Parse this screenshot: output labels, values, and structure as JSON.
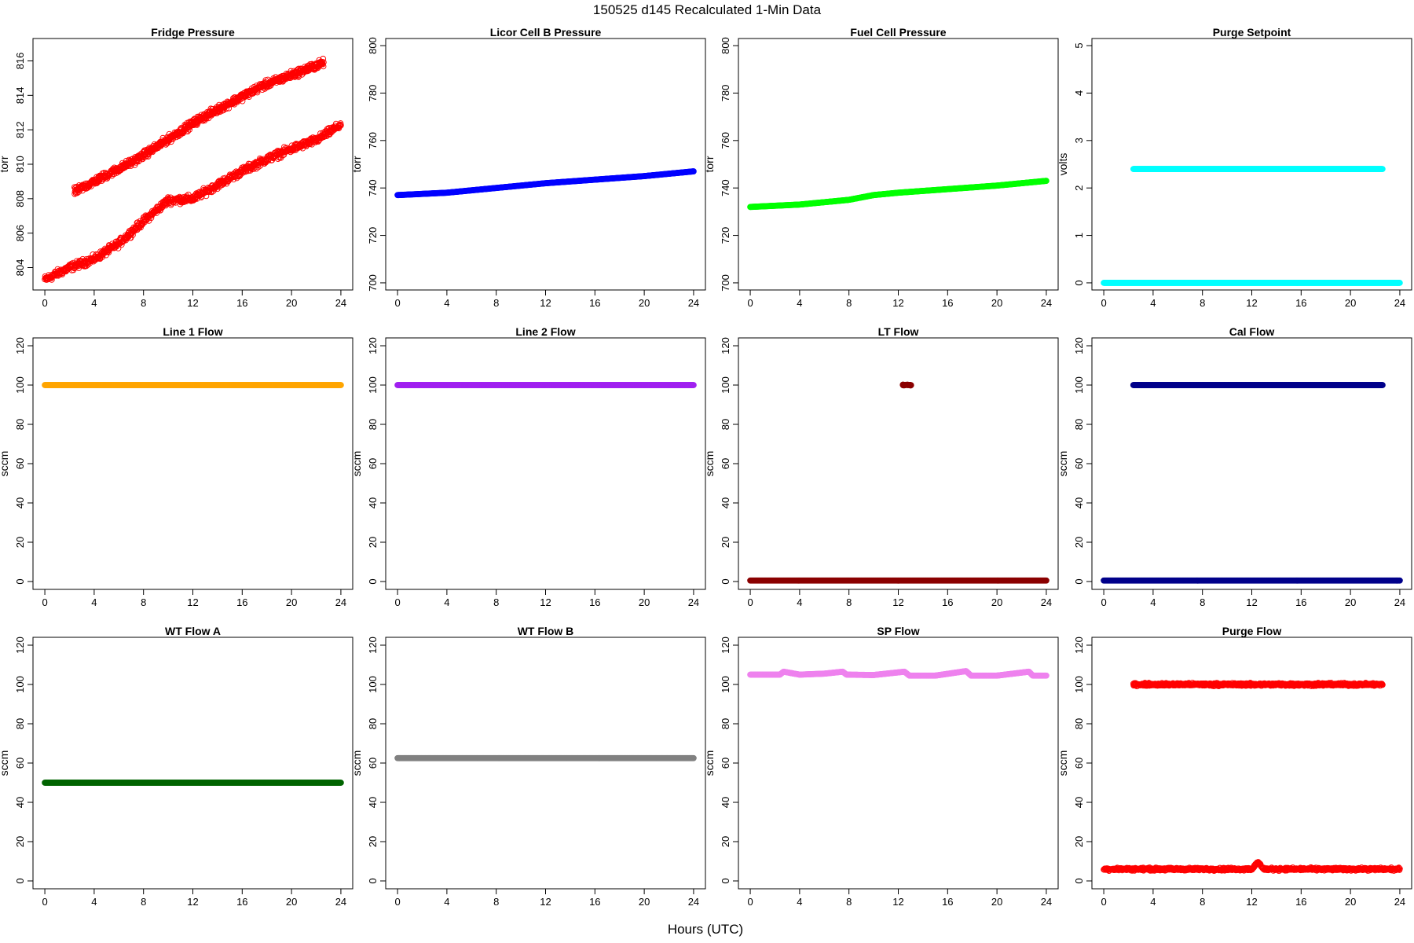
{
  "figure": {
    "title": "150525   d145   Recalculated 1-Min Data",
    "xlabel": "Hours (UTC)"
  },
  "chart_data": [
    {
      "type": "scatter",
      "title": "Fridge Pressure",
      "ylabel": "torr",
      "xlim": [
        0,
        24
      ],
      "ylim": [
        802.7,
        817.3
      ],
      "xticks": [
        0,
        4,
        8,
        12,
        16,
        20,
        24
      ],
      "yticks": [
        804,
        806,
        808,
        810,
        812,
        814,
        816
      ],
      "color": "#ff0000",
      "marker": "open-circle",
      "series": [
        {
          "x": [
            0,
            2,
            4,
            6,
            8,
            10,
            12,
            14,
            16,
            18,
            20,
            22,
            24
          ],
          "y": [
            803.3,
            804.0,
            804.5,
            805.4,
            806.7,
            807.9,
            808.0,
            808.8,
            809.6,
            810.3,
            810.9,
            811.4,
            812.3
          ]
        },
        {
          "x": [
            2.4,
            7.5,
            12.5,
            17.5,
            22.6
          ],
          "y": [
            808.4,
            810.3,
            812.6,
            814.5,
            815.9
          ]
        }
      ]
    },
    {
      "type": "scatter",
      "title": "Licor Cell B Pressure",
      "ylabel": "torr",
      "xlim": [
        0,
        24
      ],
      "ylim": [
        697,
        803
      ],
      "xticks": [
        0,
        4,
        8,
        12,
        16,
        20,
        24
      ],
      "yticks": [
        700,
        720,
        740,
        760,
        780,
        800
      ],
      "color": "#0000ff",
      "marker": "filled-circle",
      "series": [
        {
          "x": [
            0,
            4,
            8,
            12,
            16,
            20,
            24
          ],
          "y": [
            737,
            738,
            740,
            742,
            743.5,
            745,
            747
          ]
        }
      ]
    },
    {
      "type": "scatter",
      "title": "Fuel Cell Pressure",
      "ylabel": "torr",
      "xlim": [
        0,
        24
      ],
      "ylim": [
        697,
        803
      ],
      "xticks": [
        0,
        4,
        8,
        12,
        16,
        20,
        24
      ],
      "yticks": [
        700,
        720,
        740,
        760,
        780,
        800
      ],
      "color": "#00ff00",
      "marker": "filled-circle",
      "series": [
        {
          "x": [
            0,
            4,
            8,
            10,
            12,
            16,
            20,
            24
          ],
          "y": [
            732,
            733,
            735,
            737,
            738,
            739.5,
            741,
            743
          ]
        }
      ]
    },
    {
      "type": "scatter",
      "title": "Purge Setpoint",
      "ylabel": "volts",
      "xlim": [
        0,
        24
      ],
      "ylim": [
        -0.15,
        5.15
      ],
      "xticks": [
        0,
        4,
        8,
        12,
        16,
        20,
        24
      ],
      "yticks": [
        0,
        1,
        2,
        3,
        4,
        5
      ],
      "color": "#00ffff",
      "marker": "open-circle",
      "series": [
        {
          "x": [
            0,
            24
          ],
          "y": [
            0,
            0
          ]
        },
        {
          "x": [
            2.4,
            7.5,
            12.5,
            17.5,
            22.6
          ],
          "y": [
            2.4,
            2.4,
            2.4,
            2.4,
            2.4
          ]
        }
      ]
    },
    {
      "type": "scatter",
      "title": "Line 1 Flow",
      "ylabel": "sccm",
      "xlim": [
        0,
        24
      ],
      "ylim": [
        -4,
        124
      ],
      "xticks": [
        0,
        4,
        8,
        12,
        16,
        20,
        24
      ],
      "yticks": [
        0,
        20,
        40,
        60,
        80,
        100,
        120
      ],
      "color": "#ffa500",
      "marker": "filled-circle",
      "series": [
        {
          "x": [
            0,
            24
          ],
          "y": [
            100,
            100
          ]
        }
      ]
    },
    {
      "type": "scatter",
      "title": "Line 2 Flow",
      "ylabel": "sccm",
      "xlim": [
        0,
        24
      ],
      "ylim": [
        -4,
        124
      ],
      "xticks": [
        0,
        4,
        8,
        12,
        16,
        20,
        24
      ],
      "yticks": [
        0,
        20,
        40,
        60,
        80,
        100,
        120
      ],
      "color": "#a020f0",
      "marker": "filled-circle",
      "series": [
        {
          "x": [
            0,
            24
          ],
          "y": [
            100,
            100
          ]
        }
      ]
    },
    {
      "type": "scatter",
      "title": "LT Flow",
      "ylabel": "sccm",
      "xlim": [
        0,
        24
      ],
      "ylim": [
        -4,
        124
      ],
      "xticks": [
        0,
        4,
        8,
        12,
        16,
        20,
        24
      ],
      "yticks": [
        0,
        20,
        40,
        60,
        80,
        100,
        120
      ],
      "color": "#8b0000",
      "marker": "filled-circle",
      "series": [
        {
          "x": [
            0,
            24
          ],
          "y": [
            0.5,
            0.5
          ]
        },
        {
          "x": [
            12.5,
            12.9
          ],
          "y": [
            100,
            100
          ]
        }
      ]
    },
    {
      "type": "scatter",
      "title": "Cal Flow",
      "ylabel": "sccm",
      "xlim": [
        0,
        24
      ],
      "ylim": [
        -4,
        124
      ],
      "xticks": [
        0,
        4,
        8,
        12,
        16,
        20,
        24
      ],
      "yticks": [
        0,
        20,
        40,
        60,
        80,
        100,
        120
      ],
      "color": "#00008b",
      "marker": "filled-circle",
      "series": [
        {
          "x": [
            0,
            24
          ],
          "y": [
            0.5,
            0.5
          ]
        },
        {
          "x": [
            2.4,
            7.5,
            12.5,
            17.5,
            22.6
          ],
          "y": [
            100,
            100,
            100,
            100,
            100
          ]
        }
      ]
    },
    {
      "type": "scatter",
      "title": "WT Flow A",
      "ylabel": "sccm",
      "xlim": [
        0,
        24
      ],
      "ylim": [
        -4,
        124
      ],
      "xticks": [
        0,
        4,
        8,
        12,
        16,
        20,
        24
      ],
      "yticks": [
        0,
        20,
        40,
        60,
        80,
        100,
        120
      ],
      "color": "#006400",
      "marker": "filled-circle",
      "series": [
        {
          "x": [
            0,
            24
          ],
          "y": [
            50,
            50
          ]
        }
      ]
    },
    {
      "type": "scatter",
      "title": "WT Flow B",
      "ylabel": "sccm",
      "xlim": [
        0,
        24
      ],
      "ylim": [
        -4,
        124
      ],
      "xticks": [
        0,
        4,
        8,
        12,
        16,
        20,
        24
      ],
      "yticks": [
        0,
        20,
        40,
        60,
        80,
        100,
        120
      ],
      "color": "#808080",
      "marker": "filled-circle",
      "series": [
        {
          "x": [
            0,
            24
          ],
          "y": [
            62.5,
            62.5
          ]
        }
      ]
    },
    {
      "type": "scatter",
      "title": "SP Flow",
      "ylabel": "sccm",
      "xlim": [
        0,
        24
      ],
      "ylim": [
        -4,
        124
      ],
      "xticks": [
        0,
        4,
        8,
        12,
        16,
        20,
        24
      ],
      "yticks": [
        0,
        20,
        40,
        60,
        80,
        100,
        120
      ],
      "color": "#ee82ee",
      "marker": "filled-circle",
      "series": [
        {
          "x": [
            0,
            2.4,
            2.7,
            4,
            6,
            7.5,
            7.8,
            10,
            12.5,
            12.9,
            15,
            17.5,
            17.9,
            20,
            22.6,
            22.9,
            24
          ],
          "y": [
            105,
            105,
            106.5,
            105,
            105.5,
            106.5,
            105,
            104.8,
            106.5,
            104.5,
            104.5,
            106.8,
            104.5,
            104.5,
            106.5,
            104.5,
            104.5
          ]
        }
      ]
    },
    {
      "type": "scatter",
      "title": "Purge Flow",
      "ylabel": "sccm",
      "xlim": [
        0,
        24
      ],
      "ylim": [
        -4,
        124
      ],
      "xticks": [
        0,
        4,
        8,
        12,
        16,
        20,
        24
      ],
      "yticks": [
        0,
        20,
        40,
        60,
        80,
        100,
        120
      ],
      "color": "#ff0000",
      "marker": "open-circle",
      "series": [
        {
          "x": [
            0,
            6,
            12,
            12.5,
            13,
            18,
            24
          ],
          "y": [
            6,
            6,
            6,
            9.5,
            6,
            6,
            6
          ]
        },
        {
          "x": [
            2.4,
            7.5,
            12.5,
            17.5,
            22.6
          ],
          "y": [
            100,
            100,
            100,
            100,
            100
          ]
        }
      ]
    }
  ]
}
